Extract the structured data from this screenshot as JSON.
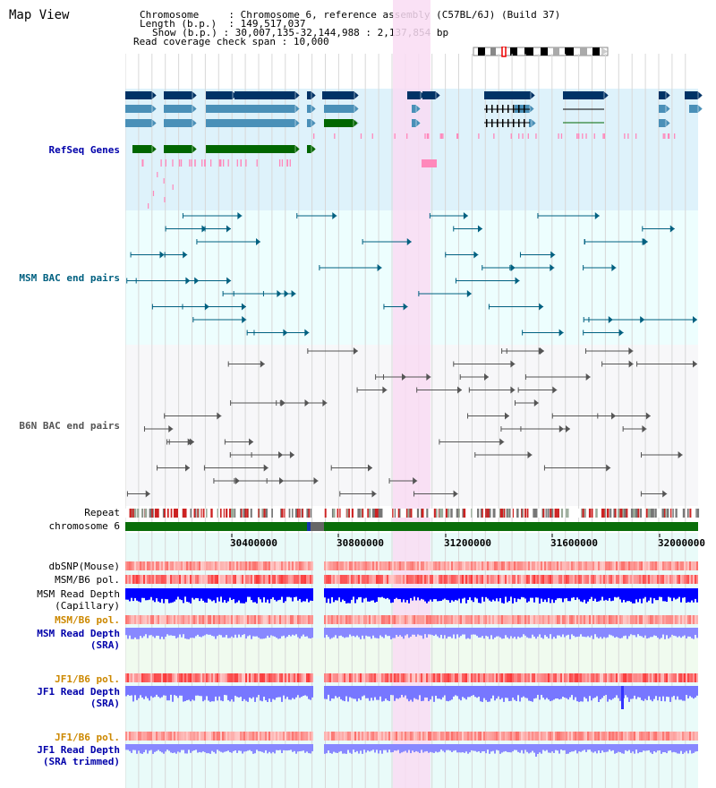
{
  "title": "Map View",
  "info": {
    "chromosome_key": "Chromosome",
    "chromosome_val": "Chromosome 6, reference assembly (C57BL/6J) (Build 37)",
    "length_key": "Length (b.p.)",
    "length_val": "149,517,037",
    "show_key": "Show (b.p.)",
    "show_val": "30,007,135-32,144,988 : 2,137,854 bp",
    "coverage_key": "Read coverage check span",
    "coverage_val": "10,000",
    "sep": ":"
  },
  "tracks": {
    "refseq": "RefSeq Genes",
    "msm_bac": "MSM BAC end pairs",
    "b6n_bac": "B6N BAC end pairs",
    "repeat": "Repeat",
    "chromosome": "chromosome 6",
    "dbsnp": "dbSNP(Mouse)",
    "msm_b6_pol": "MSM/B6 pol.",
    "msm_read_depth_cap_1": "MSM Read Depth",
    "msm_read_depth_cap_2": "(Capillary)",
    "msm_b6_pol_sra": "MSM/B6 pol.",
    "msm_read_depth_sra_1": "MSM Read Depth",
    "msm_read_depth_sra_2": "(SRA)",
    "jf1_b6_pol": "JF1/B6 pol.",
    "jf1_read_depth_1": "JF1 Read Depth",
    "jf1_read_depth_2": "(SRA)",
    "jf1_b6_pol_2": "JF1/B6 pol.",
    "jf1_read_depth_trim_1": "JF1 Read Depth",
    "jf1_read_depth_trim_2": "(SRA trimmed)"
  },
  "ticks": [
    "30400000",
    "30800000",
    "31200000",
    "31600000",
    "32000000"
  ],
  "colors": {
    "refseq_bg": "#def2fb",
    "bac_msm_bg": "#edfefe",
    "bac_b6n_bg": "#f7f7f9",
    "highlight": "#f9dcf3",
    "navy": "#003366",
    "steel": "#4a90b8",
    "green": "#006600",
    "msm_color": "#006080",
    "b6n_color": "#555555",
    "sra_label": "#cc8800",
    "depth_label": "#0000aa",
    "pol_red": "#ff4444",
    "depth_blue": "#0000ff",
    "depth_light": "#8888ff"
  }
}
